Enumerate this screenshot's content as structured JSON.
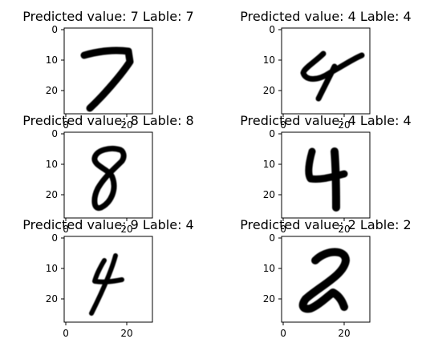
{
  "panels": [
    {
      "title": "Predicted value: 7 Lable: 7",
      "digit": "7"
    },
    {
      "title": "Predicted value: 4 Lable: 4",
      "digit": "4"
    },
    {
      "title": "Predicted value: 8 Lable: 8",
      "digit": "8"
    },
    {
      "title": "Predicted value: 4 Lable: 4",
      "digit": "4"
    },
    {
      "title": "Predicted value: 9 Lable: 4",
      "digit": "4"
    },
    {
      "title": "Predicted value: 2 Lable: 2",
      "digit": "2"
    }
  ],
  "x_ticks": [
    "0",
    "20"
  ],
  "y_ticks": [
    "0",
    "10",
    "20"
  ],
  "colormap": "binary"
}
